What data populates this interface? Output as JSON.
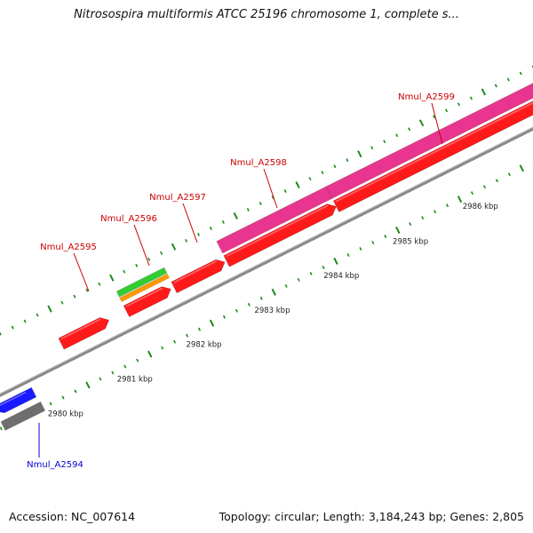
{
  "title": "Nitrosospira multiformis ATCC 25196 chromosome 1, complete s...",
  "footer": {
    "accession": "Accession: NC_007614",
    "summary": "Topology: circular; Length: 3,184,243 bp; Genes: 2,805"
  },
  "scale_labels": [
    "2980 kbp",
    "2981 kbp",
    "2982 kbp",
    "2983 kbp",
    "2984 kbp",
    "2985 kbp",
    "2986 kbp"
  ],
  "genes": [
    {
      "label": "Nmul_A2594",
      "strand": "reverse",
      "color": "#1a1aff",
      "label_color": "#0000cc"
    },
    {
      "label": "Nmul_A2595",
      "strand": "forward",
      "color": "#ff1a1a",
      "label_color": "#cc0000"
    },
    {
      "label": "Nmul_A2596",
      "strand": "forward",
      "color": "#33cc33",
      "label_color": "#cc0000"
    },
    {
      "label": "Nmul_A2597",
      "strand": "forward",
      "color": "#ff1a1a",
      "label_color": "#cc0000"
    },
    {
      "label": "Nmul_A2598",
      "strand": "forward",
      "color": "#ff1a1a",
      "label_color": "#cc0000"
    },
    {
      "label": "Nmul_A2599",
      "strand": "forward",
      "color": "#e8358f",
      "label_color": "#cc0000"
    }
  ],
  "colors": {
    "tick": "#1a8a1a",
    "backbone": "#8a8a8a",
    "forward_gene": "#ff1a1a",
    "reverse_gene": "#1a1aff",
    "pink_feature": "#e8358f",
    "green_feature": "#33cc33",
    "orange_feature": "#ff9900",
    "grey_feature": "#6e6e6e"
  }
}
